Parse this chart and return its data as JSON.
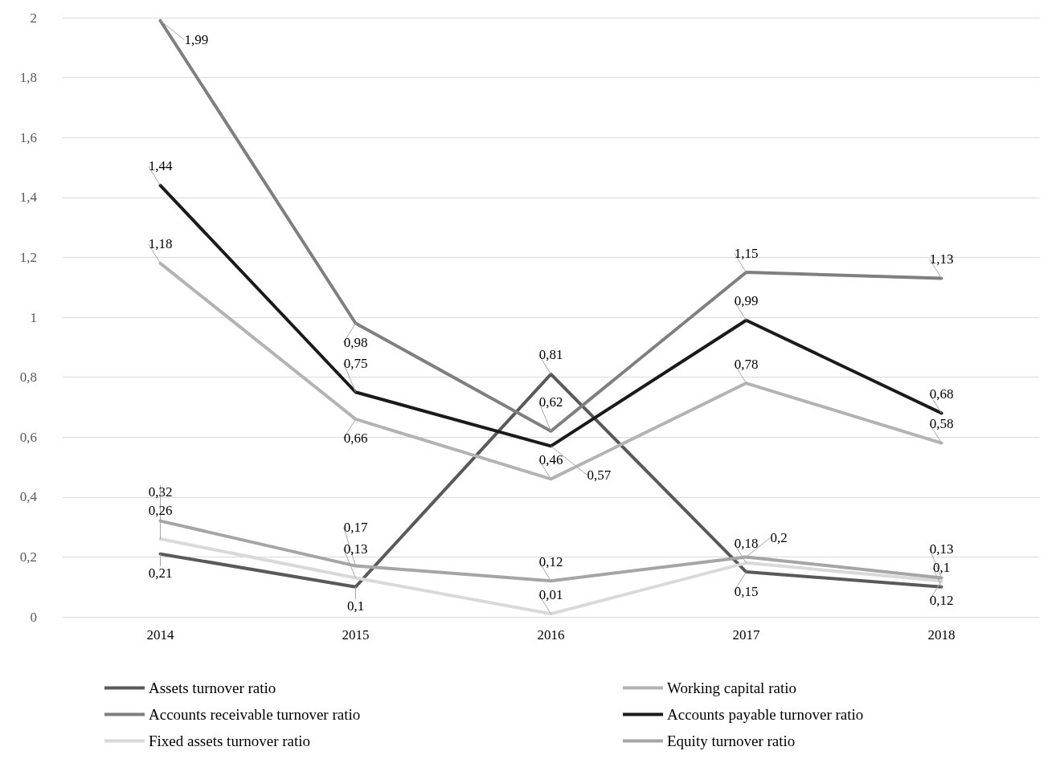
{
  "chart_data": {
    "type": "line",
    "categories": [
      "2014",
      "2015",
      "2016",
      "2017",
      "2018"
    ],
    "series": [
      {
        "name": "Assets turnover ratio",
        "color": "#595959",
        "values": [
          0.21,
          0.1,
          0.81,
          0.15,
          0.1
        ],
        "value_labels": [
          "0,21",
          "0,1",
          "0,81",
          "0,15",
          "0,1"
        ]
      },
      {
        "name": "Accounts receivable turnover ratio",
        "color": "#7f7f7f",
        "values": [
          1.99,
          0.98,
          0.62,
          1.15,
          1.13
        ],
        "value_labels": [
          "1,99",
          "0,98",
          "0,62",
          "1,15",
          "1,13"
        ]
      },
      {
        "name": "Fixed assets turnover ratio",
        "color": "#d9d9d9",
        "values": [
          0.26,
          0.13,
          0.01,
          0.18,
          0.12
        ],
        "value_labels": [
          "0,26",
          "0,13",
          "0,01",
          "0,18",
          "0,12"
        ]
      },
      {
        "name": "Working capital ratio",
        "color": "#b3b3b3",
        "values": [
          1.18,
          0.66,
          0.46,
          0.78,
          0.58
        ],
        "value_labels": [
          "1,18",
          "0,66",
          "0,46",
          "0,78",
          "0,58"
        ]
      },
      {
        "name": "Accounts payable turnover ratio",
        "color": "#1a1a1a",
        "values": [
          1.44,
          0.75,
          0.57,
          0.99,
          0.68
        ],
        "value_labels": [
          "1,44",
          "0,75",
          "0,57",
          "0,99",
          "0,68"
        ]
      },
      {
        "name": "Equity turnover ratio",
        "color": "#a5a5a5",
        "values": [
          0.32,
          0.17,
          0.12,
          0.2,
          0.13
        ],
        "value_labels": [
          "0,32",
          "0,17",
          "0,12",
          "0,2",
          "0,13"
        ]
      }
    ],
    "ylim": [
      0,
      2
    ],
    "yticks": [
      {
        "value": 0,
        "label": "0"
      },
      {
        "value": 0.2,
        "label": "0,2"
      },
      {
        "value": 0.4,
        "label": "0,4"
      },
      {
        "value": 0.6,
        "label": "0,6"
      },
      {
        "value": 0.8,
        "label": "0,8"
      },
      {
        "value": 1,
        "label": "1"
      },
      {
        "value": 1.2,
        "label": "1,2"
      },
      {
        "value": 1.4,
        "label": "1,4"
      },
      {
        "value": 1.6,
        "label": "1,6"
      },
      {
        "value": 1.8,
        "label": "1,8"
      },
      {
        "value": 2,
        "label": "2"
      }
    ],
    "grid": "y",
    "legend": "bottom",
    "marker": "none",
    "line_style": "solid"
  }
}
